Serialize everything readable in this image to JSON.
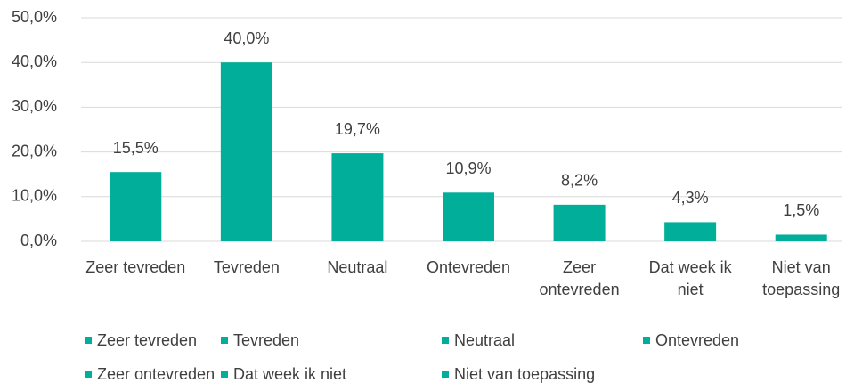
{
  "chart_data": {
    "type": "bar",
    "categories": [
      "Zeer tevreden",
      "Tevreden",
      "Neutraal",
      "Ontevreden",
      "Zeer ontevreden",
      "Dat week ik niet",
      "Niet van toepassing"
    ],
    "values": [
      15.5,
      40.0,
      19.7,
      10.9,
      8.2,
      4.3,
      1.5
    ],
    "value_labels": [
      "15,5%",
      "40,0%",
      "19,7%",
      "10,9%",
      "8,2%",
      "4,3%",
      "1,5%"
    ],
    "color": "#00ae9a",
    "ylim": [
      0,
      50
    ],
    "yticks": [
      {
        "value": 0,
        "label": "0,0%"
      },
      {
        "value": 10,
        "label": "10,0%"
      },
      {
        "value": 20,
        "label": "20,0%"
      },
      {
        "value": 30,
        "label": "30,0%"
      },
      {
        "value": 40,
        "label": "40,0%"
      },
      {
        "value": 50,
        "label": "50,0%"
      }
    ],
    "grid": true,
    "legend": "bottom"
  }
}
